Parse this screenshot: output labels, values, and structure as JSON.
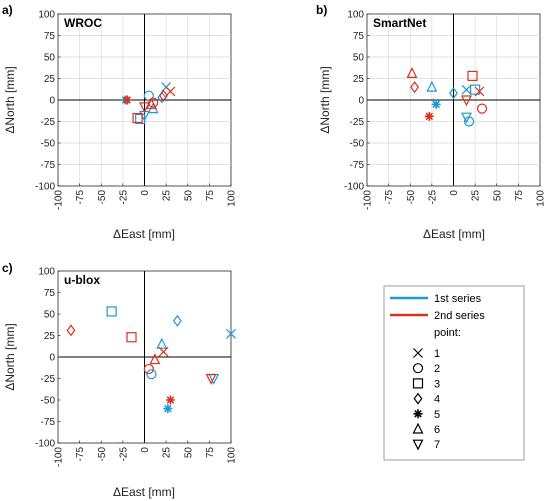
{
  "colors": {
    "series1": "#1a9ad6",
    "series2": "#d9321e",
    "grid": "#d9d9d9",
    "axis": "#000000"
  },
  "legend": {
    "items": [
      {
        "label": "1st series",
        "color": "#1a9ad6"
      },
      {
        "label": "2nd series",
        "color": "#d9321e"
      }
    ],
    "point_heading": "point:",
    "points": [
      {
        "label": "1",
        "marker": "x"
      },
      {
        "label": "2",
        "marker": "circle"
      },
      {
        "label": "3",
        "marker": "square"
      },
      {
        "label": "4",
        "marker": "diamond"
      },
      {
        "label": "5",
        "marker": "asterisk"
      },
      {
        "label": "6",
        "marker": "triangle-up"
      },
      {
        "label": "7",
        "marker": "triangle-down"
      }
    ]
  },
  "chart_data": [
    {
      "type": "scatter",
      "panel_label": "a)",
      "title": "WROC",
      "xlabel": "ΔEast [mm]",
      "ylabel": "ΔNorth [mm]",
      "xlim": [
        -100,
        100
      ],
      "ylim": [
        -100,
        100
      ],
      "xticks": [
        -100,
        -75,
        -50,
        -25,
        0,
        25,
        50,
        75,
        100
      ],
      "yticks": [
        -100,
        -75,
        -50,
        -25,
        0,
        25,
        50,
        75,
        100
      ],
      "grid": true,
      "series": [
        {
          "name": "1st series",
          "points": [
            {
              "point": "1",
              "x": 25,
              "y": 15
            },
            {
              "point": "2",
              "x": 5,
              "y": 5
            },
            {
              "point": "3",
              "x": -5,
              "y": -22
            },
            {
              "point": "4",
              "x": 20,
              "y": 3
            },
            {
              "point": "5",
              "x": -22,
              "y": 0
            },
            {
              "point": "6",
              "x": 10,
              "y": -10
            },
            {
              "point": "7",
              "x": 0,
              "y": -18
            }
          ]
        },
        {
          "name": "2nd series",
          "points": [
            {
              "point": "1",
              "x": 30,
              "y": 10
            },
            {
              "point": "2",
              "x": 10,
              "y": -3
            },
            {
              "point": "3",
              "x": -8,
              "y": -21
            },
            {
              "point": "4",
              "x": 22,
              "y": 5
            },
            {
              "point": "5",
              "x": -20,
              "y": 0
            },
            {
              "point": "6",
              "x": 8,
              "y": -5
            },
            {
              "point": "7",
              "x": 0,
              "y": -8
            }
          ]
        }
      ]
    },
    {
      "type": "scatter",
      "panel_label": "b)",
      "title": "SmartNet",
      "xlabel": "ΔEast [mm]",
      "ylabel": "ΔNorth [mm]",
      "xlim": [
        -100,
        100
      ],
      "ylim": [
        -100,
        100
      ],
      "xticks": [
        -100,
        -75,
        -50,
        -25,
        0,
        25,
        50,
        75,
        100
      ],
      "yticks": [
        -100,
        -75,
        -50,
        -25,
        0,
        25,
        50,
        75,
        100
      ],
      "grid": true,
      "series": [
        {
          "name": "1st series",
          "points": [
            {
              "point": "1",
              "x": 15,
              "y": 12
            },
            {
              "point": "2",
              "x": 18,
              "y": -25
            },
            {
              "point": "3",
              "x": 25,
              "y": 12
            },
            {
              "point": "4",
              "x": 0,
              "y": 8
            },
            {
              "point": "5",
              "x": -20,
              "y": -5
            },
            {
              "point": "6",
              "x": -25,
              "y": 15
            },
            {
              "point": "7",
              "x": 15,
              "y": -20
            }
          ]
        },
        {
          "name": "2nd series",
          "points": [
            {
              "point": "1",
              "x": 30,
              "y": 10
            },
            {
              "point": "2",
              "x": 33,
              "y": -10
            },
            {
              "point": "3",
              "x": 22,
              "y": 28
            },
            {
              "point": "4",
              "x": -45,
              "y": 15
            },
            {
              "point": "5",
              "x": -28,
              "y": -19
            },
            {
              "point": "6",
              "x": -48,
              "y": 31
            },
            {
              "point": "7",
              "x": 15,
              "y": 0
            }
          ]
        }
      ]
    },
    {
      "type": "scatter",
      "panel_label": "c)",
      "title": "u-blox",
      "xlabel": "ΔEast [mm]",
      "ylabel": "ΔNorth [mm]",
      "xlim": [
        -100,
        100
      ],
      "ylim": [
        -100,
        100
      ],
      "xticks": [
        -100,
        -75,
        -50,
        -25,
        0,
        25,
        50,
        75,
        100
      ],
      "yticks": [
        -100,
        -75,
        -50,
        -25,
        0,
        25,
        50,
        75,
        100
      ],
      "grid": false,
      "series": [
        {
          "name": "1st series",
          "points": [
            {
              "point": "1",
              "x": 100,
              "y": 27
            },
            {
              "point": "2",
              "x": 8,
              "y": -20
            },
            {
              "point": "3",
              "x": -38,
              "y": 53
            },
            {
              "point": "4",
              "x": 38,
              "y": 42
            },
            {
              "point": "5",
              "x": 27,
              "y": -60
            },
            {
              "point": "6",
              "x": 20,
              "y": 15
            },
            {
              "point": "7",
              "x": 80,
              "y": -25
            }
          ]
        },
        {
          "name": "2nd series",
          "points": [
            {
              "point": "1",
              "x": 22,
              "y": 6
            },
            {
              "point": "2",
              "x": 5,
              "y": -14
            },
            {
              "point": "3",
              "x": -15,
              "y": 23
            },
            {
              "point": "4",
              "x": -85,
              "y": 31
            },
            {
              "point": "5",
              "x": 30,
              "y": -50
            },
            {
              "point": "6",
              "x": 12,
              "y": -3
            },
            {
              "point": "7",
              "x": 77,
              "y": -25
            }
          ]
        }
      ]
    }
  ]
}
